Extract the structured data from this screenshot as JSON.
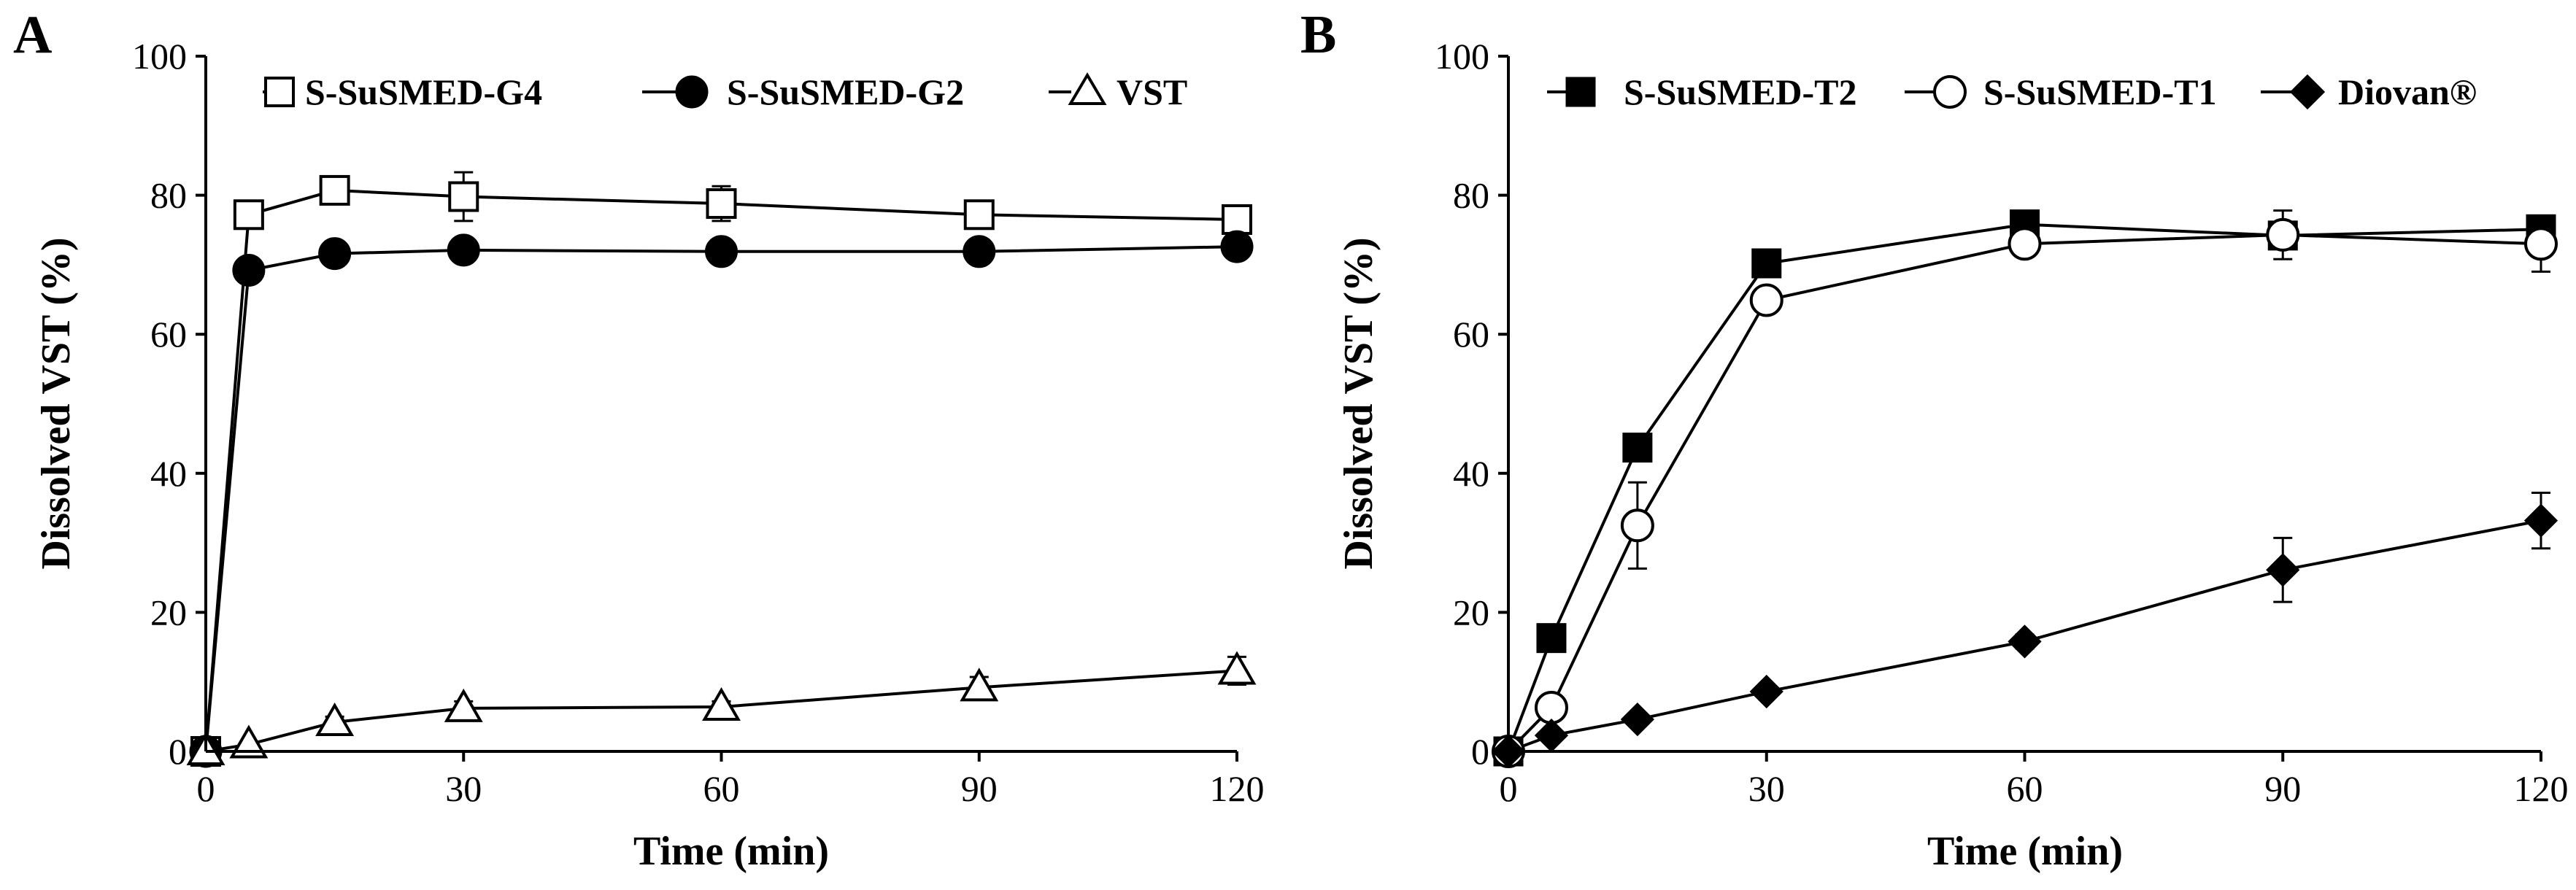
{
  "figure": {
    "colors": {
      "ink": "#000000",
      "background": "#ffffff"
    }
  },
  "chart_data": [
    {
      "type": "line",
      "panel_label": "A",
      "xlabel": "Time (min)",
      "ylabel": "Dissolved VST (%)",
      "xlim": [
        0,
        120
      ],
      "ylim": [
        0,
        100
      ],
      "xticks": [
        0,
        30,
        60,
        90,
        120
      ],
      "yticks": [
        0,
        20,
        40,
        60,
        80,
        100
      ],
      "legend_position": "top",
      "series": [
        {
          "name": "S-SuSMED-G4",
          "marker": "square-open",
          "x": [
            0,
            5,
            15,
            30,
            60,
            90,
            120
          ],
          "values": [
            0,
            77.2,
            80.7,
            79.8,
            78.8,
            77.2,
            76.5
          ],
          "errors": [
            0,
            0,
            0,
            3.5,
            2.5,
            2,
            0.8
          ]
        },
        {
          "name": "S-SuSMED-G2",
          "marker": "circle-filled",
          "x": [
            0,
            5,
            15,
            30,
            60,
            90,
            120
          ],
          "values": [
            0,
            69.2,
            71.6,
            72.1,
            71.9,
            71.9,
            72.6
          ],
          "errors": [
            0,
            0,
            0,
            0,
            0,
            0,
            0
          ]
        },
        {
          "name": "VST",
          "marker": "triangle-open",
          "x": [
            0,
            5,
            15,
            30,
            60,
            90,
            120
          ],
          "values": [
            0,
            1,
            4.2,
            6.2,
            6.4,
            9.2,
            11.6
          ],
          "errors": [
            0,
            0,
            0.8,
            1,
            0.8,
            1.5,
            2
          ]
        }
      ]
    },
    {
      "type": "line",
      "panel_label": "B",
      "xlabel": "Time (min)",
      "ylabel": "Dissolved VST (%)",
      "xlim": [
        0,
        120
      ],
      "ylim": [
        0,
        100
      ],
      "xticks": [
        0,
        30,
        60,
        90,
        120
      ],
      "yticks": [
        0,
        20,
        40,
        60,
        80,
        100
      ],
      "legend_position": "top",
      "series": [
        {
          "name": "S-SuSMED-T2",
          "marker": "square-filled",
          "x": [
            0,
            5,
            15,
            30,
            60,
            90,
            120
          ],
          "values": [
            0,
            16.3,
            43.7,
            70.2,
            75.8,
            74.2,
            75.1
          ],
          "errors": [
            0,
            0,
            0,
            0,
            0,
            0,
            0
          ]
        },
        {
          "name": "S-SuSMED-T1",
          "marker": "circle-open",
          "x": [
            0,
            5,
            15,
            30,
            60,
            90,
            120
          ],
          "values": [
            0,
            6.3,
            32.5,
            64.9,
            73,
            74.3,
            73
          ],
          "errors": [
            0,
            0,
            6.2,
            0,
            0,
            3.5,
            4
          ]
        },
        {
          "name": "Diovan®",
          "marker": "diamond-filled",
          "x": [
            0,
            5,
            15,
            30,
            60,
            90,
            120
          ],
          "values": [
            0,
            2.3,
            4.6,
            8.6,
            15.8,
            26.1,
            33.2
          ],
          "errors": [
            0,
            0,
            0,
            0,
            1,
            4.6,
            4
          ]
        }
      ]
    }
  ]
}
